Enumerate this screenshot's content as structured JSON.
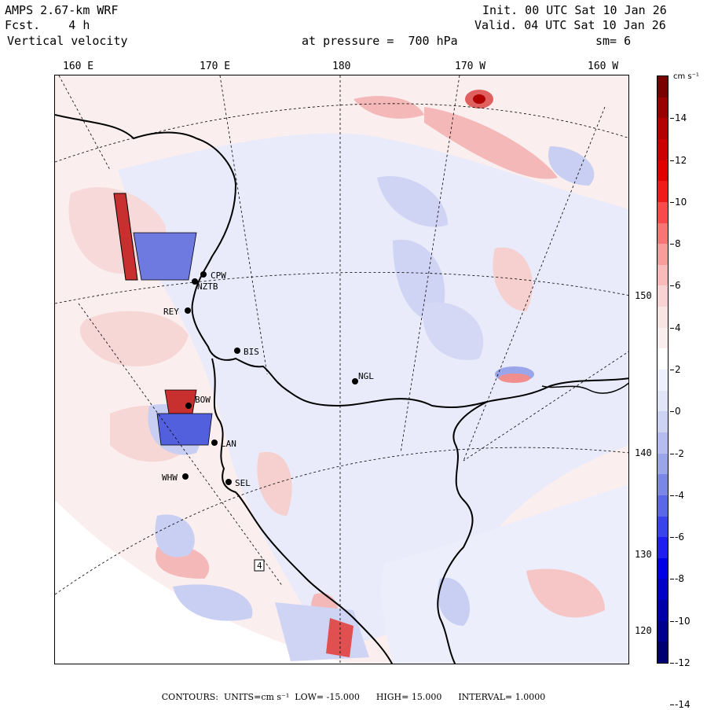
{
  "header": {
    "model": "AMPS 2.67-km WRF",
    "fcst_label": "Fcst.",
    "fcst_value": "4 h",
    "field": "Vertical velocity",
    "pressure_label": "at pressure =",
    "pressure_value": "700 hPa",
    "init": "Init. 00 UTC Sat 10 Jan 26",
    "valid": "Valid. 04 UTC Sat 10 Jan 26",
    "smooth": "sm= 6"
  },
  "longitude_labels": [
    "160 E",
    "170 E",
    "180",
    "170 W",
    "160 W"
  ],
  "latitude_labels": [
    "150 W",
    "140 W",
    "130 W",
    "120 W"
  ],
  "stations": [
    "CPW",
    "NZTB",
    "REY",
    "BIS",
    "NGL",
    "LAN",
    "WHW",
    "SEL",
    "BOW",
    "4"
  ],
  "colorbar": {
    "unit": "cm s⁻¹",
    "labels": [
      "14",
      "12",
      "10",
      "8",
      "6",
      "4",
      "2",
      "0",
      "-2",
      "-4",
      "-6",
      "-8",
      "-10",
      "-12",
      "-14"
    ],
    "colors": [
      "#7a0000",
      "#990000",
      "#b30000",
      "#cc0000",
      "#e00000",
      "#f01a1a",
      "#f84a4a",
      "#f97575",
      "#f99c9c",
      "#f9baba",
      "#f8d3d3",
      "#f9e4e4",
      "#fbeeee",
      "#ffffff",
      "#eef0fb",
      "#e1e5f8",
      "#cdd3f3",
      "#b4bdee",
      "#9aa5ea",
      "#7b87e6",
      "#5a67e6",
      "#3a44ec",
      "#1e1ef0",
      "#0000e6",
      "#0000c8",
      "#0000aa",
      "#00008f",
      "#000075"
    ]
  },
  "footer": {
    "contours": "CONTOURS:",
    "units": "UNITS=cm s⁻¹",
    "low": "LOW= -15.000",
    "high": "HIGH= 15.000",
    "interval": "INTERVAL= 1.0000"
  },
  "colors": {
    "warm": "#f9dede",
    "cool": "#e4e7f8",
    "pos": "#f3a0a0",
    "neg": "#8f9ae6",
    "strong_neg": "#3a44d8",
    "strong_pos": "#c81414"
  }
}
